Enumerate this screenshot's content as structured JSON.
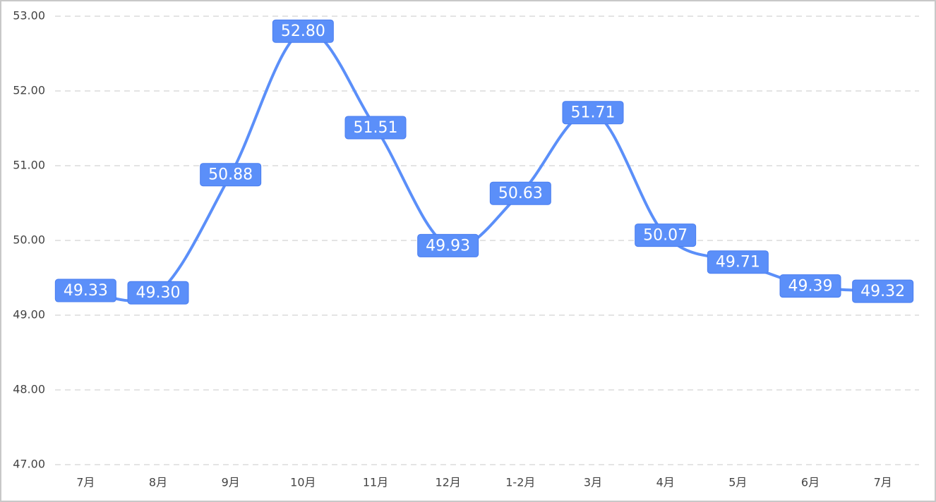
{
  "chart_data": {
    "type": "line",
    "categories": [
      "7月",
      "8月",
      "9月",
      "10月",
      "11月",
      "12月",
      "1-2月",
      "3月",
      "4月",
      "5月",
      "6月",
      "7月"
    ],
    "values": [
      49.33,
      49.3,
      50.88,
      52.8,
      51.51,
      49.93,
      50.63,
      51.71,
      50.07,
      49.71,
      49.39,
      49.32
    ],
    "value_labels": [
      "49.33",
      "49.30",
      "50.88",
      "52.80",
      "51.51",
      "49.93",
      "50.63",
      "51.71",
      "50.07",
      "49.71",
      "49.39",
      "49.32"
    ],
    "color": "#5b8ff9",
    "ylim": [
      47,
      53
    ],
    "yticks": [
      {
        "value": 47,
        "label": "47.00"
      },
      {
        "value": 48,
        "label": "48.00"
      },
      {
        "value": 49,
        "label": "49.00"
      },
      {
        "value": 50,
        "label": "50.00"
      },
      {
        "value": 51,
        "label": "51.00"
      },
      {
        "value": 52,
        "label": "52.00"
      },
      {
        "value": 53,
        "label": "53.00"
      }
    ],
    "grid": true
  }
}
